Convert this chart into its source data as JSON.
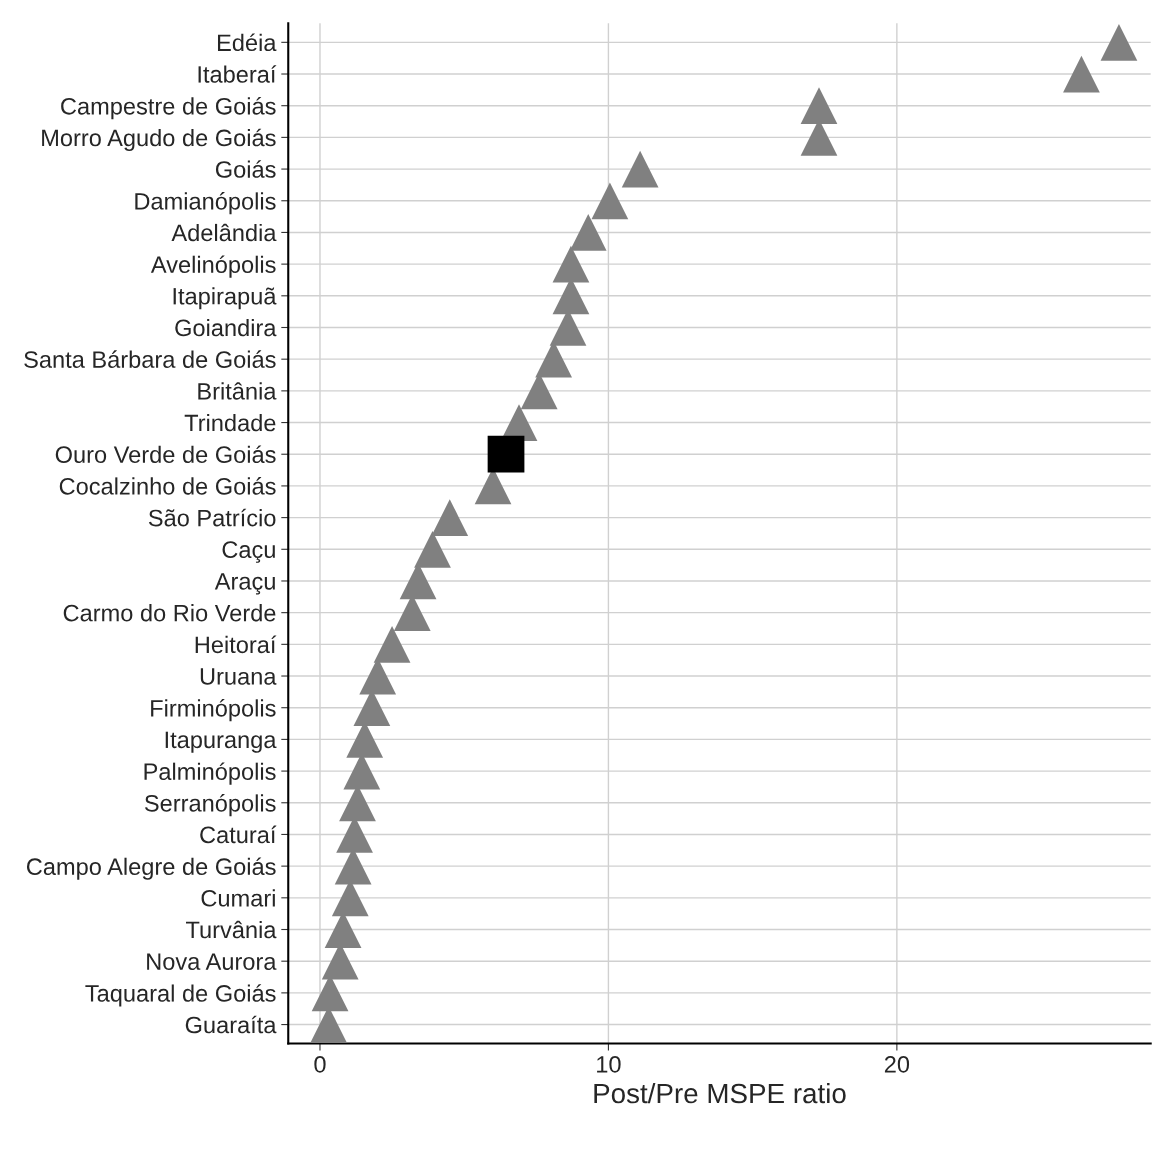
{
  "chart_data": {
    "type": "scatter",
    "xlabel": "Post/Pre MSPE ratio",
    "categories": [
      "Edéia",
      "Itaberaí",
      "Campestre de Goiás",
      "Morro Agudo de Goiás",
      "Goiás",
      "Damianópolis",
      "Adelândia",
      "Avelinópolis",
      "Itapirapuã",
      "Goiandira",
      "Santa Bárbara de Goiás",
      "Britânia",
      "Trindade",
      "Ouro Verde de Goiás",
      "Cocalzinho de Goiás",
      "São Patrício",
      "Caçu",
      "Araçu",
      "Carmo do Rio Verde",
      "Heitoraí",
      "Uruana",
      "Firminópolis",
      "Itapuranga",
      "Palminópolis",
      "Serranópolis",
      "Caturaí",
      "Campo Alegre de Goiás",
      "Cumari",
      "Turvânia",
      "Nova Aurora",
      "Taquaral de Goiás",
      "Guaraíta"
    ],
    "orientation": "horizontal",
    "series": [
      {
        "color": "#808080",
        "marker": "triangle",
        "values": [
          27.7,
          26.4,
          17.3,
          17.3,
          11.1,
          10.05,
          9.3,
          8.7,
          8.7,
          8.6,
          8.1,
          7.6,
          6.9,
          null,
          6.0,
          4.5,
          3.9,
          3.4,
          3.2,
          2.5,
          2.0,
          1.8,
          1.55,
          1.45,
          1.3,
          1.2,
          1.15,
          1.05,
          0.8,
          0.7,
          0.35,
          0.3
        ]
      },
      {
        "color": "#000000",
        "marker": "square",
        "values": [
          null,
          null,
          null,
          null,
          null,
          null,
          null,
          null,
          null,
          null,
          null,
          null,
          null,
          6.45,
          null,
          null,
          null,
          null,
          null,
          null,
          null,
          null,
          null,
          null,
          null,
          null,
          null,
          null,
          null,
          null,
          null,
          null
        ]
      }
    ],
    "xlim": [
      -1.1,
      28.8
    ],
    "xticks": [
      0,
      10,
      20
    ],
    "grid": true,
    "legend": false
  }
}
